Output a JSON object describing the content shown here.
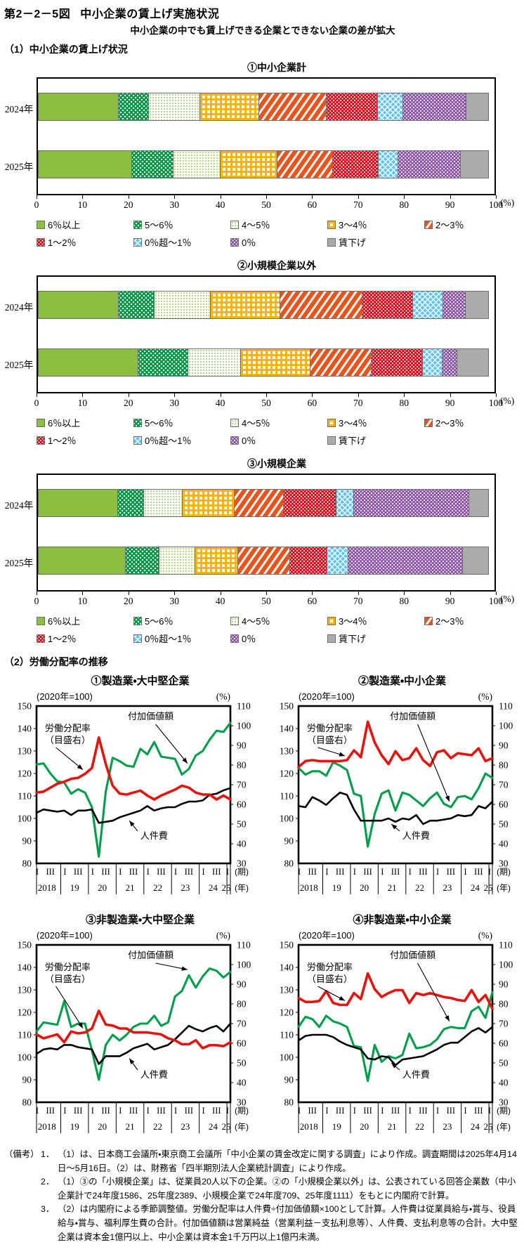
{
  "header": {
    "figure_label": "第2－2－5図",
    "figure_title": "中小企業の賃上げ実施状況",
    "subtitle": "中小企業の中でも賃上げできる企業とできない企業の差が拡大"
  },
  "section1": {
    "title": "（1）中小企業の賃上げ状況"
  },
  "section2": {
    "title": "（2）労働分配率の推移"
  },
  "chart_data": {
    "wage_bars": {
      "type": "bar",
      "orientation": "horizontal-stacked",
      "unit": "(%)",
      "xlim": [
        0,
        100
      ],
      "x_ticks": [
        0,
        10,
        20,
        30,
        40,
        50,
        60,
        70,
        80,
        90,
        100
      ],
      "segments": [
        "6％以上",
        "5～6％",
        "4～5％",
        "3～4％",
        "2～3％",
        "1～2％",
        "0％超～1％",
        "0％",
        "賃下げ"
      ],
      "charts": [
        {
          "title": "①中小企業計",
          "rows": [
            {
              "label": "2024年",
              "values": [
                17.7,
                6.7,
                11.4,
                13.1,
                14.9,
                11.5,
                5.6,
                14.0,
                5.1
              ]
            },
            {
              "label": "2025年",
              "values": [
                20.6,
                9.3,
                10.4,
                12.6,
                12.4,
                10.1,
                4.4,
                13.9,
                6.3
              ]
            }
          ]
        },
        {
          "title": "②小規模企業以外",
          "rows": [
            {
              "label": "2024年",
              "values": [
                17.7,
                8.0,
                12.4,
                15.4,
                18.2,
                11.2,
                6.8,
                5.0,
                5.3
              ]
            },
            {
              "label": "2025年",
              "values": [
                22.0,
                11.1,
                11.7,
                15.3,
                13.6,
                11.4,
                4.4,
                3.4,
                7.1
              ]
            }
          ]
        },
        {
          "title": "③小規模企業",
          "rows": [
            {
              "label": "2024年",
              "values": [
                17.6,
                5.8,
                8.6,
                11.5,
                10.9,
                11.7,
                4.1,
                25.3,
                4.5
              ]
            },
            {
              "label": "2025年",
              "values": [
                19.3,
                7.4,
                8.1,
                9.5,
                11.5,
                8.3,
                4.9,
                25.1,
                5.9
              ]
            }
          ]
        }
      ]
    },
    "labor_share": {
      "type": "line",
      "index_note": "(2020年=100)",
      "right_unit": "(%)",
      "left_axis": {
        "min": 80,
        "max": 150,
        "step": 10
      },
      "right_axis": {
        "min": 30,
        "max": 110,
        "step": 10
      },
      "x": {
        "years": [
          "2018",
          "19",
          "20",
          "21",
          "22",
          "23",
          "24",
          "25"
        ],
        "quarter_labels": [
          "I",
          "III"
        ],
        "period_label": "(期)",
        "year_label": "(年)"
      },
      "series_labels": {
        "labor_share": "労働分配率",
        "scale_note": "（目盛右）",
        "value_added": "付加価値額",
        "personnel": "人件費"
      },
      "series_colors": {
        "value_added": "#00a04b",
        "personnel": "#000000",
        "labor_share": "#e8130c"
      },
      "charts": [
        {
          "title": "①製造業・大中堅企業",
          "value_added": [
            124,
            124.5,
            120,
            116.5,
            116,
            111,
            113,
            111.5,
            105,
            83,
            112,
            127,
            125.5,
            123.5,
            123,
            131,
            128.5,
            134,
            127.5,
            127,
            126.5,
            119.5,
            122,
            128,
            130,
            135,
            139,
            138.5,
            142.5
          ],
          "personnel": [
            102.5,
            104,
            103.5,
            103,
            103.5,
            101.5,
            103.5,
            103.5,
            104,
            98,
            98.5,
            99,
            100.5,
            101.5,
            102.5,
            103.5,
            105.5,
            103.5,
            104.5,
            105,
            105,
            106.5,
            107.5,
            107.5,
            108,
            110.5,
            111,
            112.5,
            113.5
          ],
          "labor_share_right": [
            66,
            66.5,
            68.5,
            70.5,
            71.5,
            73,
            73.5,
            75.5,
            78.5,
            94,
            80.5,
            69.5,
            65.5,
            65,
            66,
            67,
            64.5,
            62.5,
            64.5,
            66,
            67.5,
            69.5,
            68.5,
            66,
            65,
            65,
            62.5,
            64.5,
            62.5
          ]
        },
        {
          "title": "②製造業・中小企業",
          "value_added": [
            122.5,
            119.5,
            121,
            121,
            119,
            125,
            123.5,
            121.5,
            111,
            110,
            87.5,
            102,
            111,
            112.5,
            103.5,
            111.5,
            110.5,
            108,
            105.5,
            109,
            111.5,
            106.5,
            105,
            109.5,
            110,
            108.5,
            113.5,
            120,
            118
          ],
          "personnel": [
            105.5,
            105,
            109.5,
            108,
            106,
            109,
            111.5,
            110.5,
            104,
            99,
            99,
            99,
            99,
            100,
            98.5,
            100,
            99.5,
            101.5,
            97.5,
            99,
            99,
            99.5,
            100,
            101.5,
            101,
            101.5,
            105.5,
            104.5,
            107.5
          ],
          "labor_share_right": [
            79,
            82,
            82.5,
            82,
            82,
            82,
            82,
            82.5,
            87.5,
            84,
            102,
            91.5,
            85,
            80.5,
            87,
            82.5,
            83.5,
            88.5,
            82.5,
            79.5,
            86.5,
            87.5,
            83.5,
            86,
            85.5,
            85,
            88.5,
            82,
            83.5
          ]
        },
        {
          "title": "③非製造業・大中堅企業",
          "value_added": [
            111.5,
            115.5,
            115,
            114.5,
            125,
            113.5,
            115,
            115,
            103,
            90,
            105.5,
            110,
            107.5,
            110,
            113.5,
            115,
            115,
            118.5,
            114,
            115.5,
            127,
            129.5,
            136.5,
            131,
            136,
            139.5,
            138.5,
            135.5,
            138
          ],
          "personnel": [
            101.5,
            103.5,
            104,
            103.5,
            105.5,
            105.5,
            104.5,
            104,
            103.5,
            97,
            100.5,
            100.5,
            100.5,
            102,
            104,
            105,
            106,
            103.5,
            104.5,
            105.5,
            108,
            111,
            114,
            112.5,
            111.5,
            113,
            114,
            111.5,
            115
          ],
          "labor_share_right": [
            64.5,
            62.5,
            63.5,
            64.5,
            60.5,
            66,
            65,
            65.5,
            67.5,
            76.5,
            69.5,
            69,
            67.5,
            67.5,
            65.5,
            65.5,
            65.5,
            65,
            64.5,
            62.5,
            61.5,
            59.5,
            59.5,
            61.5,
            57.5,
            59,
            59,
            58.5,
            60.5
          ]
        },
        {
          "title": "④非製造業・中小企業",
          "value_added": [
            113.5,
            118,
            117,
            113.5,
            118.5,
            116,
            115,
            113.5,
            105,
            104.5,
            89.5,
            105.5,
            98,
            100.5,
            99.5,
            101,
            110.5,
            104,
            104.5,
            105.5,
            108,
            112.5,
            113.5,
            113,
            113,
            120.5,
            122.5,
            117.5,
            129
          ],
          "personnel": [
            107.5,
            109.5,
            110,
            110,
            110,
            109,
            107,
            105.5,
            104.5,
            103.5,
            99.5,
            99,
            100.5,
            100,
            96.5,
            99,
            99.5,
            100,
            100.5,
            102,
            103.5,
            105.5,
            106.5,
            106.5,
            109,
            111.5,
            113,
            111,
            113.5
          ],
          "labor_share_right": [
            83,
            81,
            81,
            81.5,
            86.5,
            80.5,
            79.5,
            79.5,
            85.5,
            82.5,
            95.5,
            87.5,
            83.5,
            85.5,
            87,
            87,
            80.5,
            85.5,
            84.5,
            85.5,
            84.5,
            83.5,
            83,
            82,
            81.5,
            87,
            81,
            84.5,
            77.5
          ]
        }
      ]
    }
  },
  "notes": {
    "prefix": "（備考）",
    "items": [
      {
        "no": "1．",
        "text": "（1）は、日本商工会議所・東京商工会議所「中小企業の賃金改定に関する調査」により作成。調査期間は2025年4月14日～5月16日。（2）は、財務省「四半期別法人企業統計調査」により作成。"
      },
      {
        "no": "2．",
        "text": "（1）③の「小規模企業」は、従業員20人以下の企業。②の「小規模企業以外」は、公表されている回答企業数（中小企業計で24年度1586、25年度2389、小規模企業で24年度709、25年度1111）をもとに内閣府で計算。"
      },
      {
        "no": "3．",
        "text": "（2）は内閣府による季節調整値。労働分配率は人件費÷付加価値額×100として計算。人件費は従業員給与・賞与、役員給与・賞与、福利厚生費の合計。付加価値額は営業純益（営業利益－支払利息等）、人件費、支払利息等の合計。大中堅企業は資本金1億円以上、中小企業は資本金1千万円以上1億円未満。"
      }
    ]
  }
}
